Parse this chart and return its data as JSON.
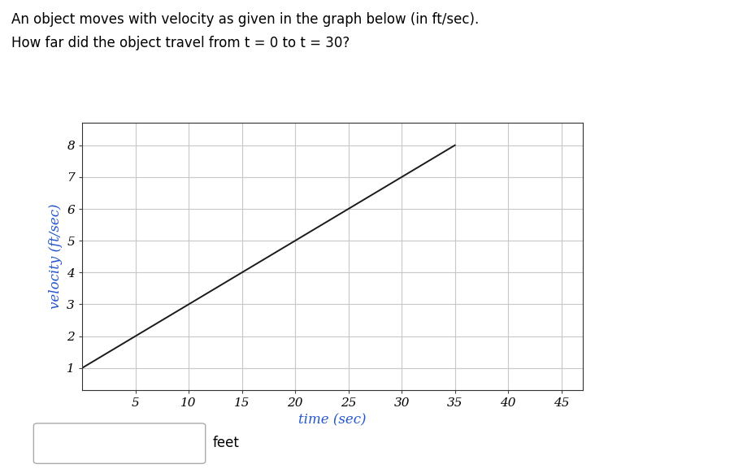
{
  "title_line1": "An object moves with velocity as given in the graph below (in ft/sec).",
  "title_line2": "How far did the object travel from t = 0 to t = 30?",
  "line_x": [
    0,
    35
  ],
  "line_y": [
    1,
    8
  ],
  "xlabel": "time (sec)",
  "ylabel": "velocity (ft/sec)",
  "xlabel_color": "#2255cc",
  "ylabel_color": "#2255cc",
  "xlim": [
    0,
    47
  ],
  "ylim": [
    0.3,
    8.7
  ],
  "xticks": [
    5,
    10,
    15,
    20,
    25,
    30,
    35,
    40,
    45
  ],
  "yticks": [
    1,
    2,
    3,
    4,
    5,
    6,
    7,
    8
  ],
  "grid_color": "#c8c8c8",
  "line_color": "#1a1a1a",
  "bg_color": "#ffffff",
  "title_fontsize": 12,
  "axis_label_fontsize": 12,
  "tick_fontsize": 11,
  "feet_label": "feet"
}
